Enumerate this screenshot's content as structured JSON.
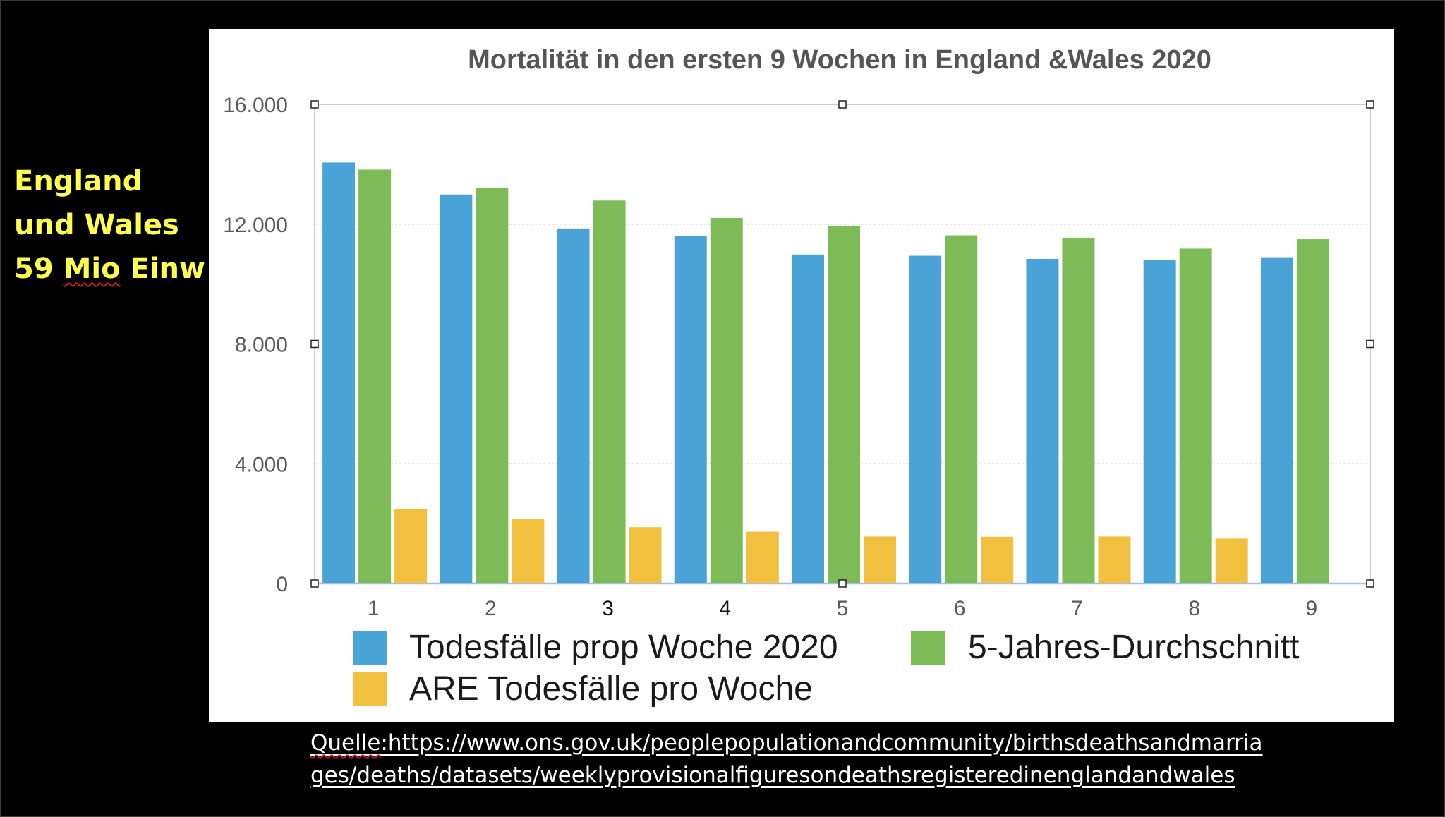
{
  "side_label": {
    "line1": "England",
    "line2": "und Wales",
    "line3_prefix": "59 ",
    "line3_mio": "Mio",
    "line3_suffix": " Einw"
  },
  "source": {
    "line1_prefix": "Quelle",
    "line1_rest": ":https://www.ons.gov.uk/peoplepopulationandcommunity/birthsdeathsandmarria",
    "line2": "ges/deaths/datasets/weeklyprovisionalfiguresondeathsregisteredinenglandandwales"
  },
  "chart_data": {
    "type": "bar",
    "title": "Mortalität in den ersten 9 Wochen in England &Wales 2020",
    "xlabel": "",
    "ylabel": "",
    "categories": [
      "1",
      "2",
      "3",
      "4",
      "5",
      "6",
      "7",
      "8",
      "9"
    ],
    "series": [
      {
        "name": "Todesfälle prop Woche 2020",
        "color": "#4aa3d6",
        "values": [
          14058,
          12990,
          11856,
          11612,
          10986,
          10944,
          10841,
          10816,
          10895
        ]
      },
      {
        "name": "5-Jahres-Durchschnitt",
        "color": "#7dbb56",
        "values": [
          13822,
          13214,
          12789,
          12208,
          11925,
          11627,
          11548,
          11183,
          11498
        ]
      },
      {
        "name": "ARE Todesfälle pro Woche",
        "color": "#f0c03e",
        "values": [
          2480,
          2150,
          1880,
          1730,
          1570,
          1560,
          1570,
          1500,
          null
        ]
      }
    ],
    "ylim": [
      0,
      16000
    ],
    "yticks": [
      0,
      4000,
      8000,
      12000,
      16000
    ],
    "ytick_labels": [
      "0",
      "4.000",
      "8.000",
      "12.000",
      "16.000"
    ],
    "grid": true,
    "legend_position": "bottom"
  }
}
